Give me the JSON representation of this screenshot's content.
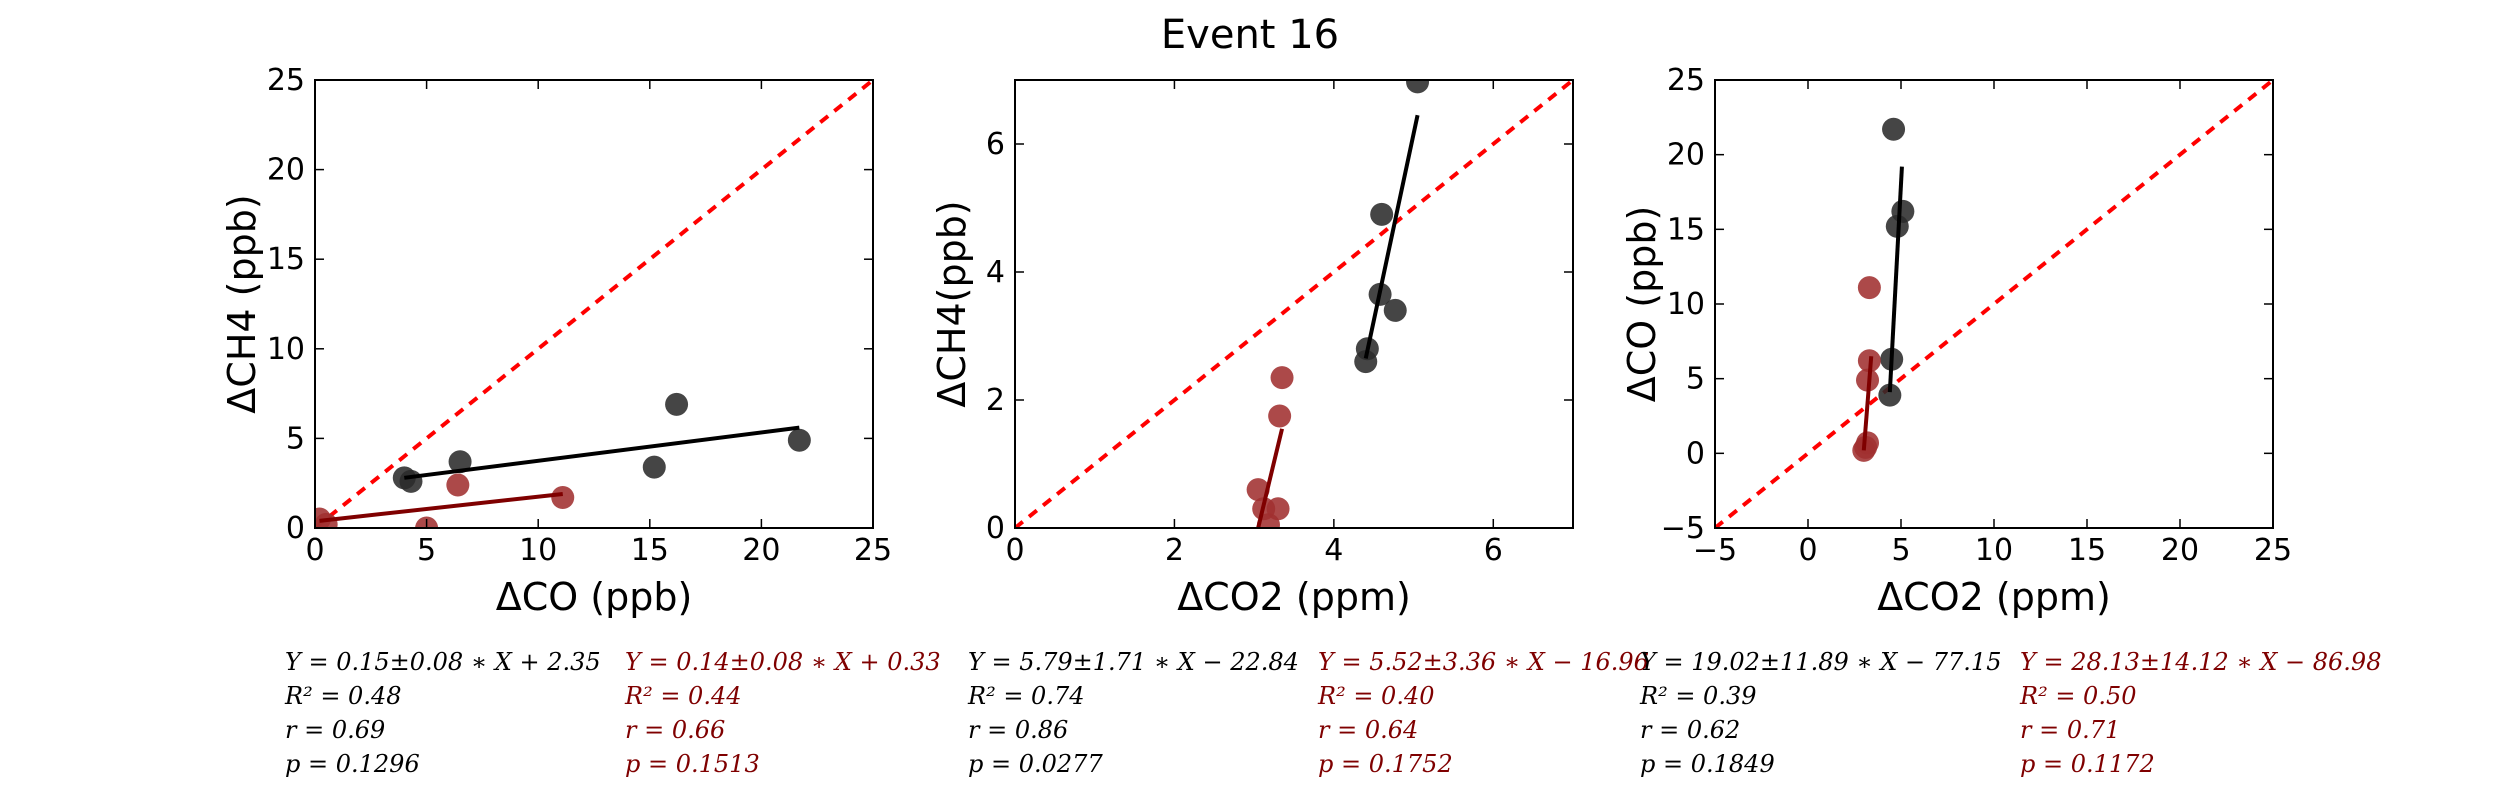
{
  "figure": {
    "title": "Event 16"
  },
  "colors": {
    "black": "#000000",
    "red": "#7f0000",
    "ref": "#ff0000",
    "dot_black": "#2b2b2b",
    "dot_red": "#a03030"
  },
  "chart_data": [
    {
      "type": "scatter",
      "xlabel": "ΔCO (ppb)",
      "ylabel": "ΔCH4 (ppb)",
      "xlim": [
        0,
        25
      ],
      "ylim": [
        0,
        25
      ],
      "xticks": [
        "0",
        "5",
        "10",
        "15",
        "20",
        "25"
      ],
      "yticks": [
        "0",
        "5",
        "10",
        "15",
        "20",
        "25"
      ],
      "grid": false,
      "reference_line": "y = x",
      "series": [
        {
          "color": "black",
          "points": [
            [
              4.0,
              2.8
            ],
            [
              4.3,
              2.6
            ],
            [
              6.5,
              3.7
            ],
            [
              15.2,
              3.4
            ],
            [
              16.2,
              6.9
            ],
            [
              21.7,
              4.9
            ]
          ],
          "fit": [
            [
              4.0,
              2.8
            ],
            [
              21.7,
              5.6
            ]
          ]
        },
        {
          "color": "red",
          "points": [
            [
              0.2,
              0.5
            ],
            [
              0.5,
              0.2
            ],
            [
              5.0,
              0.0
            ],
            [
              6.4,
              2.4
            ],
            [
              11.1,
              1.7
            ]
          ],
          "fit": [
            [
              0.2,
              0.4
            ],
            [
              11.1,
              1.9
            ]
          ]
        }
      ],
      "stats": [
        {
          "color": "black",
          "eq": "Y = 0.15±0.08 ∗ X + 2.35",
          "r2": "R² = 0.48",
          "r": "r = 0.69",
          "p": "p = 0.1296"
        },
        {
          "color": "red",
          "eq": "Y = 0.14±0.08 ∗ X + 0.33",
          "r2": "R² = 0.44",
          "r": "r = 0.66",
          "p": "p = 0.1513"
        }
      ]
    },
    {
      "type": "scatter",
      "xlabel": "ΔCO2 (ppm)",
      "ylabel": "ΔCH4(ppb)",
      "xlim": [
        0,
        7
      ],
      "ylim": [
        0,
        7
      ],
      "xticks": [
        "0",
        "2",
        "4",
        "6"
      ],
      "yticks": [
        "0",
        "2",
        "4",
        "6"
      ],
      "grid": false,
      "reference_line": "y = x",
      "series": [
        {
          "color": "black",
          "points": [
            [
              4.4,
              2.6
            ],
            [
              4.42,
              2.8
            ],
            [
              4.58,
              3.65
            ],
            [
              4.6,
              4.9
            ],
            [
              4.77,
              3.4
            ],
            [
              5.05,
              6.97
            ]
          ],
          "fit": [
            [
              4.4,
              2.65
            ],
            [
              5.05,
              6.45
            ]
          ]
        },
        {
          "color": "red",
          "points": [
            [
              3.05,
              0.6
            ],
            [
              3.12,
              0.3
            ],
            [
              3.18,
              0.05
            ],
            [
              3.3,
              0.3
            ],
            [
              3.32,
              1.75
            ],
            [
              3.35,
              2.35
            ]
          ],
          "fit": [
            [
              3.05,
              0.0
            ],
            [
              3.35,
              1.55
            ]
          ]
        }
      ],
      "stats": [
        {
          "color": "black",
          "eq": "Y = 5.79±1.71 ∗ X − 22.84",
          "r2": "R² = 0.74",
          "r": "r = 0.86",
          "p": "p = 0.0277"
        },
        {
          "color": "red",
          "eq": "Y = 5.52±3.36 ∗ X − 16.96",
          "r2": "R² = 0.40",
          "r": "r = 0.64",
          "p": "p = 0.1752"
        }
      ]
    },
    {
      "type": "scatter",
      "xlabel": "ΔCO2 (ppm)",
      "ylabel": "ΔCO (ppb)",
      "xlim": [
        -5,
        25
      ],
      "ylim": [
        -5,
        25
      ],
      "xticks": [
        "−5",
        "0",
        "5",
        "10",
        "15",
        "20",
        "25"
      ],
      "yticks": [
        "−5",
        "0",
        "5",
        "10",
        "15",
        "20",
        "25"
      ],
      "grid": false,
      "reference_line": "y = x",
      "series": [
        {
          "color": "black",
          "points": [
            [
              4.4,
              3.9
            ],
            [
              4.5,
              6.3
            ],
            [
              4.6,
              21.7
            ],
            [
              4.8,
              15.2
            ],
            [
              5.1,
              16.2
            ]
          ],
          "fit": [
            [
              4.4,
              4.1
            ],
            [
              5.05,
              19.2
            ]
          ]
        },
        {
          "color": "red",
          "points": [
            [
              3.0,
              0.2
            ],
            [
              3.1,
              0.4
            ],
            [
              3.2,
              0.7
            ],
            [
              3.2,
              4.9
            ],
            [
              3.3,
              6.2
            ],
            [
              3.3,
              11.1
            ]
          ],
          "fit": [
            [
              3.0,
              0.2
            ],
            [
              3.4,
              6.5
            ]
          ]
        }
      ],
      "stats": [
        {
          "color": "black",
          "eq": "Y = 19.02±11.89 ∗ X − 77.15",
          "r2": "R² = 0.39",
          "r": "r = 0.62",
          "p": "p = 0.1849"
        },
        {
          "color": "red",
          "eq": "Y = 28.13±14.12 ∗ X − 86.98",
          "r2": "R² = 0.50",
          "r": "r = 0.71",
          "p": "p = 0.1172"
        }
      ]
    }
  ]
}
